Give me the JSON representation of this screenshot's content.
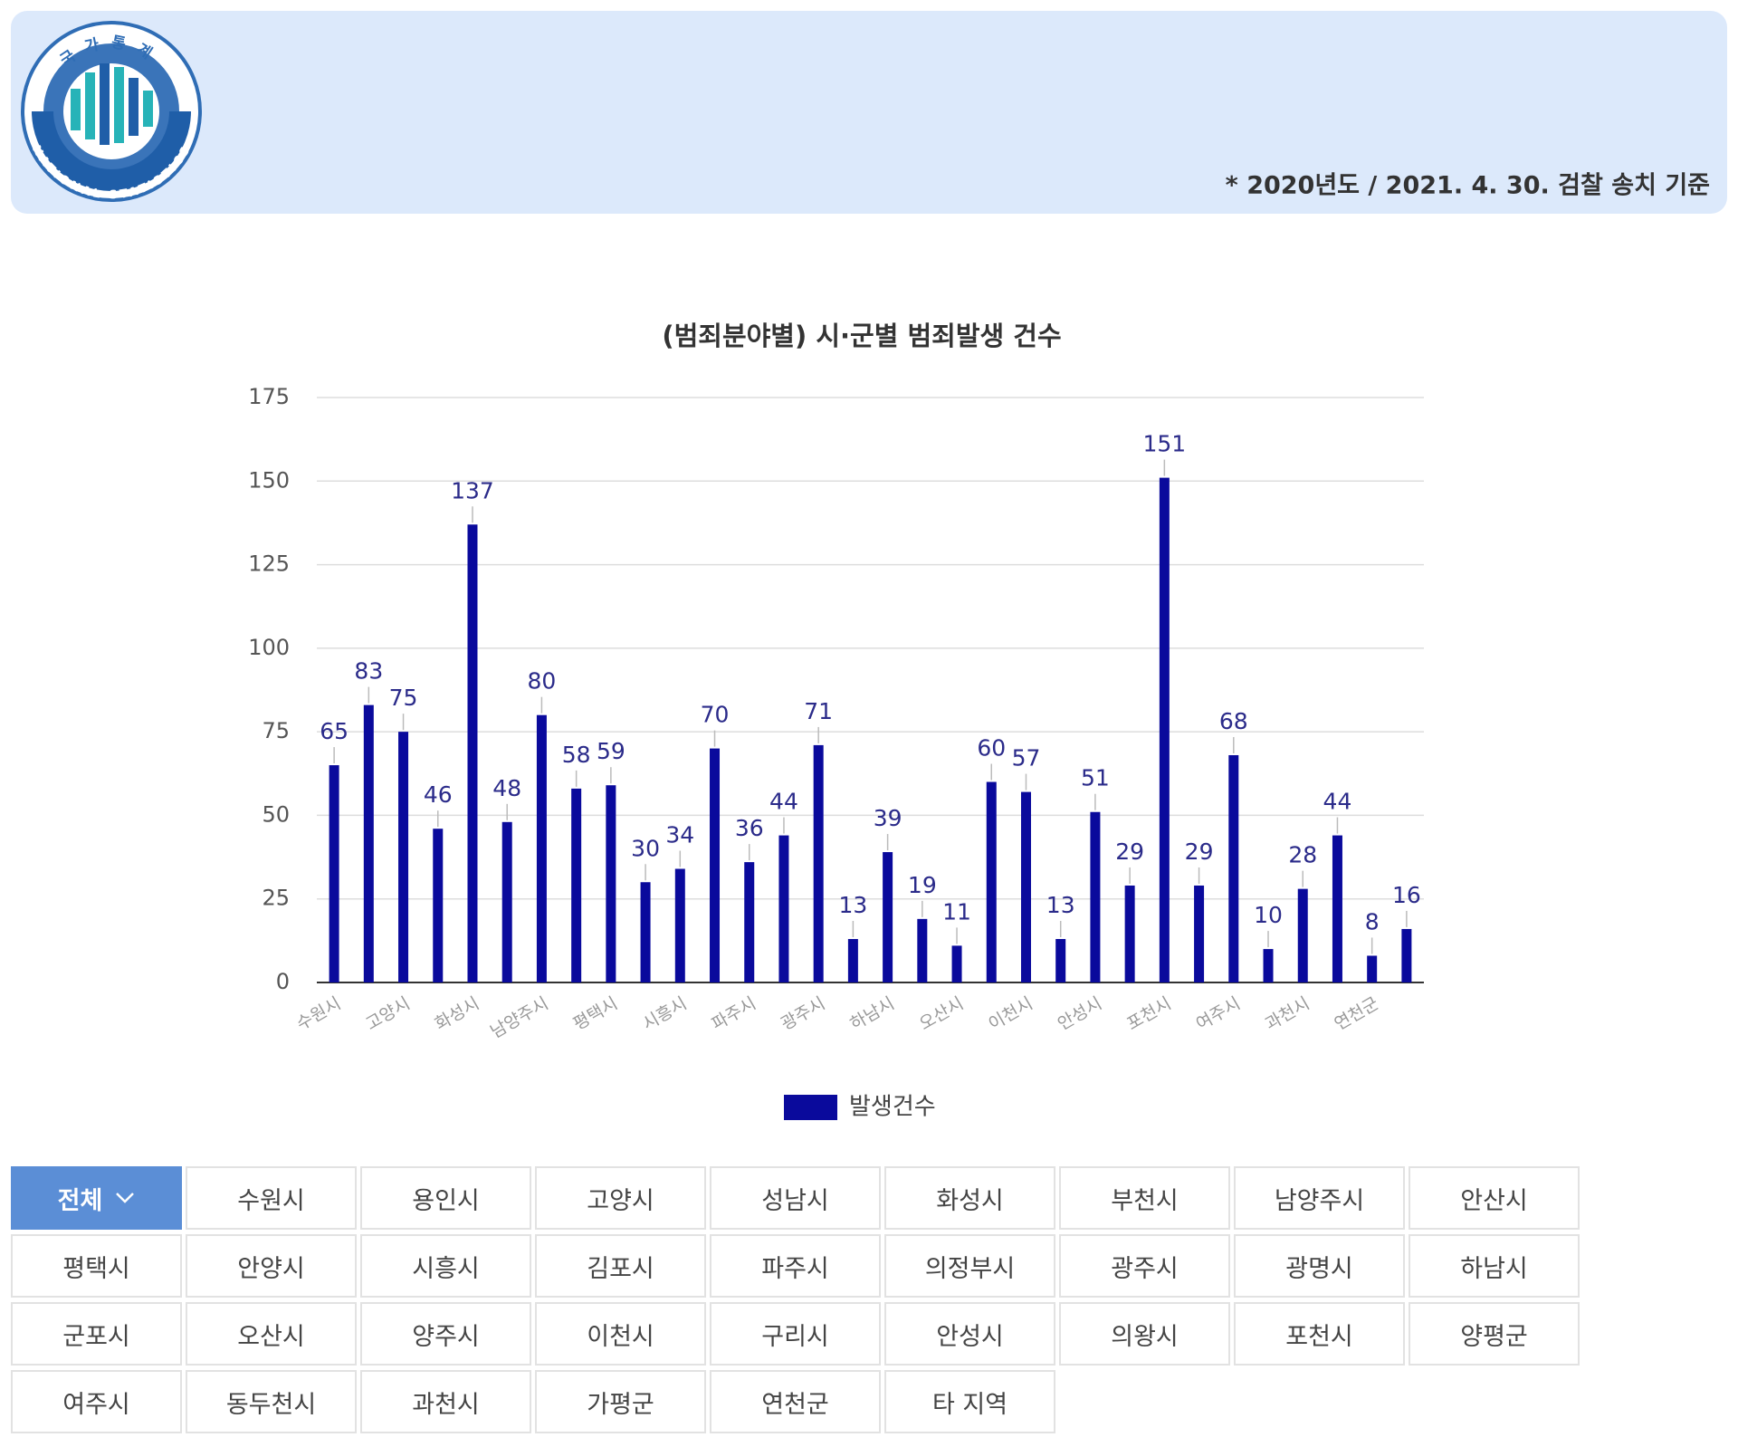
{
  "header": {
    "logo": {
      "korean": "국가통계",
      "english": "NATIONAL STATISTICS"
    },
    "note": "* 2020년도 / 2021. 4. 30. 검찰 송치 기준"
  },
  "chart_data": {
    "type": "bar",
    "title": "(범죄분야별) 시·군별 범죄발생 건수",
    "categories": [
      "수원시",
      null,
      "고양시",
      null,
      "화성시",
      null,
      "남양주시",
      null,
      "평택시",
      null,
      "시흥시",
      null,
      "파주시",
      null,
      "광주시",
      null,
      "하남시",
      null,
      "오산시",
      null,
      "이천시",
      null,
      "안성시",
      null,
      "포천시",
      null,
      "여주시",
      null,
      "과천시",
      null,
      "연천군",
      null
    ],
    "series": [
      {
        "name": "발생건수",
        "color": "#0a0a9c",
        "values": [
          65,
          83,
          75,
          46,
          137,
          48,
          80,
          58,
          59,
          30,
          34,
          70,
          36,
          44,
          71,
          13,
          39,
          19,
          11,
          60,
          57,
          13,
          51,
          29,
          151,
          29,
          68,
          10,
          28,
          44,
          8,
          16
        ]
      }
    ],
    "ylim": [
      0,
      175
    ],
    "yticks": [
      0,
      25,
      50,
      75,
      100,
      125,
      150,
      175
    ],
    "grid": true,
    "legend": "bottom"
  },
  "buttons": [
    "전체",
    "수원시",
    "용인시",
    "고양시",
    "성남시",
    "화성시",
    "부천시",
    "남양주시",
    "안산시",
    "평택시",
    "안양시",
    "시흥시",
    "김포시",
    "파주시",
    "의정부시",
    "광주시",
    "광명시",
    "하남시",
    "군포시",
    "오산시",
    "양주시",
    "이천시",
    "구리시",
    "안성시",
    "의왕시",
    "포천시",
    "양평군",
    "여주시",
    "동두천시",
    "과천시",
    "가평군",
    "연천군",
    "타 지역"
  ]
}
